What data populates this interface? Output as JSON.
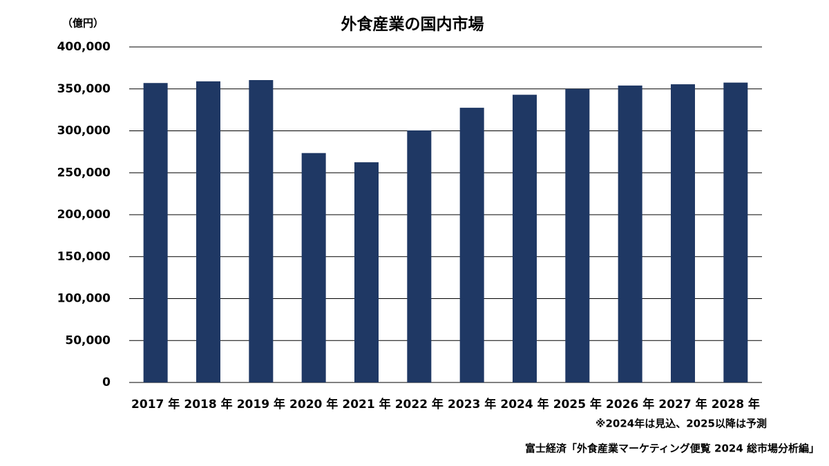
{
  "chart_data": {
    "type": "bar",
    "title": "外食産業の国内市場",
    "y_unit": "（億円）",
    "categories": [
      "2017 年",
      "2018 年",
      "2019 年",
      "2020 年",
      "2021 年",
      "2022 年",
      "2023 年",
      "2024 年",
      "2025 年",
      "2026 年",
      "2027 年",
      "2028 年"
    ],
    "values": [
      357000,
      359000,
      360500,
      273500,
      262500,
      300500,
      327500,
      343000,
      350000,
      354000,
      355500,
      357500
    ],
    "color": "#1f3864",
    "ylim": [
      0,
      400000
    ],
    "yticks": [
      0,
      {
        "value": 50000,
        "label": "50,000"
      },
      {
        "value": 100000,
        "label": "100,000"
      },
      {
        "value": 150000,
        "label": "150,000"
      },
      {
        "value": 200000,
        "label": "200,000"
      },
      {
        "value": 250000,
        "label": "250,000"
      },
      {
        "value": 300000,
        "label": "300,000"
      },
      {
        "value": 350000,
        "label": "350,000"
      },
      {
        "value": 400000,
        "label": "400,000"
      }
    ],
    "grid": true,
    "note": "※2024年は見込、2025以降は予測",
    "source": "富士経済「外食産業マーケティング便覧 2024 総市場分析編」"
  }
}
